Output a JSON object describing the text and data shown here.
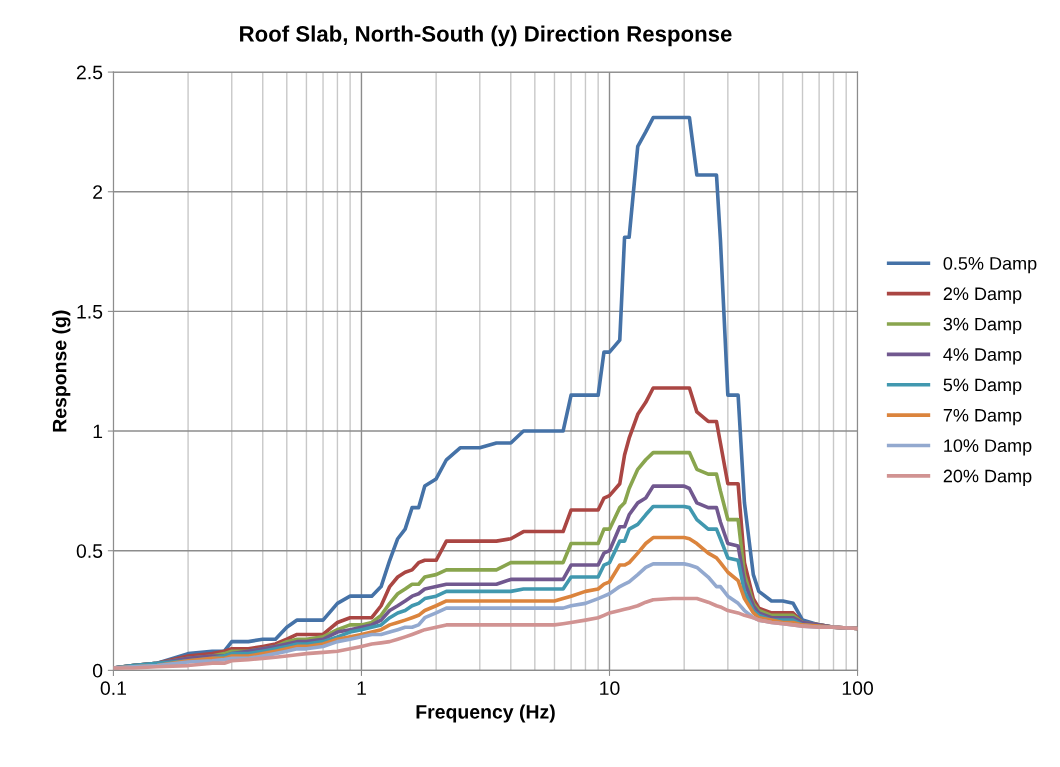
{
  "chart_data": {
    "type": "line",
    "title": "Roof Slab, North-South (y) Direction Response",
    "xlabel": "Frequency (Hz)",
    "ylabel": "Response (g)",
    "log": "x",
    "grid": true,
    "legend": "right",
    "line_style": "solid",
    "marker": "none",
    "xlim": [
      0.1,
      100
    ],
    "xticks": [
      0.1,
      1,
      10,
      100
    ],
    "ylim": [
      0,
      2.5
    ],
    "yticks": [
      0,
      0.5,
      1,
      1.5,
      2,
      2.5
    ],
    "x": [
      0.1,
      0.12,
      0.15,
      0.2,
      0.25,
      0.28,
      0.3,
      0.35,
      0.4,
      0.45,
      0.5,
      0.55,
      0.6,
      0.7,
      0.8,
      0.9,
      1.0,
      1.1,
      1.2,
      1.3,
      1.4,
      1.5,
      1.6,
      1.7,
      1.8,
      2.0,
      2.2,
      2.5,
      3.0,
      3.5,
      4.0,
      4.5,
      5.0,
      6.0,
      6.5,
      7.0,
      8.0,
      9.0,
      9.5,
      10,
      11,
      11.5,
      12,
      13,
      14,
      15,
      18,
      20,
      21,
      22.5,
      25,
      27,
      28,
      30,
      33,
      35,
      38,
      40,
      45,
      50,
      55,
      60,
      70,
      80,
      100
    ],
    "series": [
      {
        "name": "0.5% Damp",
        "color": "#4572a7",
        "values": [
          0.01,
          0.02,
          0.03,
          0.07,
          0.08,
          0.08,
          0.12,
          0.12,
          0.13,
          0.13,
          0.18,
          0.21,
          0.21,
          0.21,
          0.28,
          0.31,
          0.31,
          0.31,
          0.35,
          0.46,
          0.55,
          0.59,
          0.68,
          0.68,
          0.77,
          0.8,
          0.88,
          0.93,
          0.93,
          0.95,
          0.95,
          1.0,
          1.0,
          1.0,
          1.0,
          1.15,
          1.15,
          1.15,
          1.33,
          1.33,
          1.38,
          1.81,
          1.81,
          2.19,
          2.25,
          2.31,
          2.31,
          2.31,
          2.31,
          2.07,
          2.07,
          2.07,
          1.8,
          1.15,
          1.15,
          0.7,
          0.4,
          0.33,
          0.29,
          0.29,
          0.28,
          0.21,
          0.19,
          0.18,
          0.175
        ]
      },
      {
        "name": "2% Damp",
        "color": "#aa4643",
        "values": [
          0.01,
          0.02,
          0.03,
          0.06,
          0.07,
          0.08,
          0.09,
          0.09,
          0.1,
          0.11,
          0.13,
          0.15,
          0.15,
          0.15,
          0.2,
          0.22,
          0.22,
          0.22,
          0.27,
          0.35,
          0.39,
          0.41,
          0.42,
          0.45,
          0.46,
          0.46,
          0.54,
          0.54,
          0.54,
          0.54,
          0.55,
          0.58,
          0.58,
          0.58,
          0.58,
          0.67,
          0.67,
          0.67,
          0.72,
          0.73,
          0.78,
          0.9,
          0.97,
          1.07,
          1.12,
          1.18,
          1.18,
          1.18,
          1.18,
          1.08,
          1.04,
          1.04,
          0.95,
          0.78,
          0.78,
          0.45,
          0.3,
          0.26,
          0.24,
          0.24,
          0.24,
          0.2,
          0.19,
          0.18,
          0.175
        ]
      },
      {
        "name": "3% Damp",
        "color": "#89a54e",
        "values": [
          0.01,
          0.02,
          0.03,
          0.05,
          0.06,
          0.07,
          0.08,
          0.08,
          0.09,
          0.1,
          0.12,
          0.13,
          0.13,
          0.14,
          0.17,
          0.19,
          0.19,
          0.2,
          0.23,
          0.28,
          0.32,
          0.34,
          0.36,
          0.36,
          0.39,
          0.4,
          0.42,
          0.42,
          0.42,
          0.42,
          0.45,
          0.45,
          0.45,
          0.45,
          0.45,
          0.53,
          0.53,
          0.53,
          0.59,
          0.59,
          0.68,
          0.7,
          0.76,
          0.84,
          0.88,
          0.91,
          0.91,
          0.91,
          0.91,
          0.84,
          0.82,
          0.82,
          0.75,
          0.63,
          0.63,
          0.4,
          0.28,
          0.25,
          0.23,
          0.23,
          0.23,
          0.2,
          0.19,
          0.18,
          0.175
        ]
      },
      {
        "name": "4% Damp",
        "color": "#71588f",
        "values": [
          0.01,
          0.02,
          0.03,
          0.05,
          0.06,
          0.06,
          0.07,
          0.08,
          0.09,
          0.1,
          0.11,
          0.12,
          0.12,
          0.13,
          0.16,
          0.17,
          0.18,
          0.19,
          0.21,
          0.25,
          0.27,
          0.29,
          0.31,
          0.32,
          0.34,
          0.35,
          0.36,
          0.36,
          0.36,
          0.36,
          0.38,
          0.38,
          0.38,
          0.38,
          0.38,
          0.44,
          0.44,
          0.44,
          0.49,
          0.5,
          0.6,
          0.6,
          0.65,
          0.7,
          0.72,
          0.77,
          0.77,
          0.77,
          0.76,
          0.7,
          0.68,
          0.68,
          0.62,
          0.53,
          0.52,
          0.37,
          0.27,
          0.24,
          0.22,
          0.22,
          0.22,
          0.2,
          0.19,
          0.18,
          0.175
        ]
      },
      {
        "name": "5% Damp",
        "color": "#4198af",
        "values": [
          0.01,
          0.02,
          0.03,
          0.04,
          0.05,
          0.06,
          0.07,
          0.07,
          0.08,
          0.09,
          0.1,
          0.11,
          0.11,
          0.12,
          0.14,
          0.16,
          0.17,
          0.18,
          0.19,
          0.22,
          0.24,
          0.25,
          0.27,
          0.28,
          0.3,
          0.31,
          0.33,
          0.33,
          0.33,
          0.33,
          0.33,
          0.34,
          0.34,
          0.34,
          0.34,
          0.39,
          0.39,
          0.39,
          0.44,
          0.45,
          0.54,
          0.54,
          0.59,
          0.61,
          0.65,
          0.685,
          0.685,
          0.685,
          0.68,
          0.63,
          0.59,
          0.59,
          0.55,
          0.47,
          0.46,
          0.33,
          0.25,
          0.23,
          0.21,
          0.21,
          0.21,
          0.19,
          0.185,
          null,
          null
        ]
      },
      {
        "name": "7% Damp",
        "color": "#db843d",
        "values": [
          0.01,
          0.015,
          0.02,
          0.04,
          0.05,
          0.05,
          0.06,
          0.06,
          0.07,
          0.08,
          0.09,
          0.1,
          0.1,
          0.11,
          0.13,
          0.14,
          0.15,
          0.16,
          0.17,
          0.19,
          0.2,
          0.21,
          0.22,
          0.23,
          0.25,
          0.27,
          0.29,
          0.29,
          0.29,
          0.29,
          0.29,
          0.29,
          0.29,
          0.29,
          0.3,
          0.31,
          0.33,
          0.34,
          0.36,
          0.37,
          0.44,
          0.44,
          0.45,
          0.49,
          0.53,
          0.555,
          0.555,
          0.555,
          0.55,
          0.53,
          0.49,
          0.47,
          0.45,
          0.41,
          0.375,
          0.3,
          0.24,
          0.22,
          0.21,
          0.2,
          0.2,
          0.19,
          0.185,
          0.18,
          0.175
        ]
      },
      {
        "name": "10% Damp",
        "color": "#93a9cf",
        "values": [
          0.01,
          0.015,
          0.02,
          0.035,
          0.04,
          0.045,
          0.05,
          0.05,
          0.06,
          0.07,
          0.08,
          0.09,
          0.09,
          0.1,
          0.12,
          0.13,
          0.14,
          0.15,
          0.15,
          0.16,
          0.17,
          0.18,
          0.18,
          0.19,
          0.22,
          0.24,
          0.26,
          0.26,
          0.26,
          0.26,
          0.26,
          0.26,
          0.26,
          0.26,
          0.26,
          0.27,
          0.28,
          0.3,
          0.31,
          0.32,
          0.35,
          0.36,
          0.37,
          0.4,
          0.43,
          0.445,
          0.445,
          0.445,
          0.44,
          0.43,
          0.39,
          0.35,
          0.35,
          0.31,
          0.28,
          0.25,
          0.22,
          0.21,
          0.2,
          0.195,
          0.19,
          0.185,
          0.18,
          0.18,
          0.175
        ]
      },
      {
        "name": "20% Damp",
        "color": "#d19392",
        "values": [
          0.01,
          0.01,
          0.015,
          0.02,
          0.03,
          0.03,
          0.04,
          0.045,
          0.05,
          0.055,
          0.06,
          0.065,
          0.07,
          0.075,
          0.08,
          0.09,
          0.1,
          0.11,
          0.115,
          0.12,
          0.13,
          0.14,
          0.15,
          0.16,
          0.17,
          0.18,
          0.19,
          0.19,
          0.19,
          0.19,
          0.19,
          0.19,
          0.19,
          0.19,
          0.195,
          0.2,
          0.21,
          0.22,
          0.23,
          0.24,
          0.25,
          0.255,
          0.26,
          0.27,
          0.285,
          0.295,
          0.3,
          0.3,
          0.3,
          0.3,
          0.285,
          0.27,
          0.265,
          0.25,
          0.24,
          0.23,
          0.22,
          0.21,
          0.2,
          0.195,
          0.19,
          0.185,
          0.18,
          0.18,
          0.175
        ]
      }
    ]
  }
}
